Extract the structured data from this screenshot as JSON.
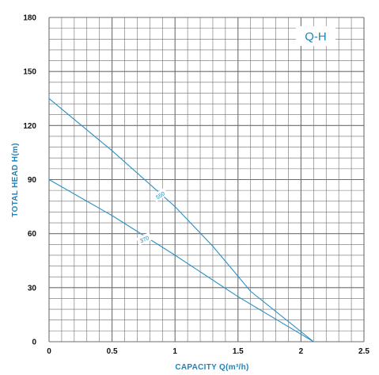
{
  "chart_data": {
    "type": "line",
    "title": "Q-H",
    "xlabel": "CAPACITY  Q(m³/h)",
    "ylabel": "TOTAL HEAD  H(m)",
    "xlim": [
      0,
      2.5
    ],
    "ylim": [
      0,
      180
    ],
    "x_ticks": [
      "0",
      "0.5",
      "1",
      "1.5",
      "2",
      "2.5"
    ],
    "y_ticks": [
      "0",
      "30",
      "60",
      "90",
      "120",
      "150",
      "180"
    ],
    "grid": true,
    "series": [
      {
        "name": "550",
        "x": [
          0,
          0.5,
          1.0,
          1.3,
          1.6,
          2.1
        ],
        "y": [
          135,
          106,
          75,
          53,
          28,
          0
        ]
      },
      {
        "name": "370",
        "x": [
          0,
          0.5,
          1.0,
          1.5,
          2.1
        ],
        "y": [
          90,
          70,
          48,
          25,
          0
        ]
      }
    ],
    "colors": {
      "line": "#2a8fc4",
      "grid": "#6e6e6e",
      "axis_text": "#1a86c0"
    }
  }
}
